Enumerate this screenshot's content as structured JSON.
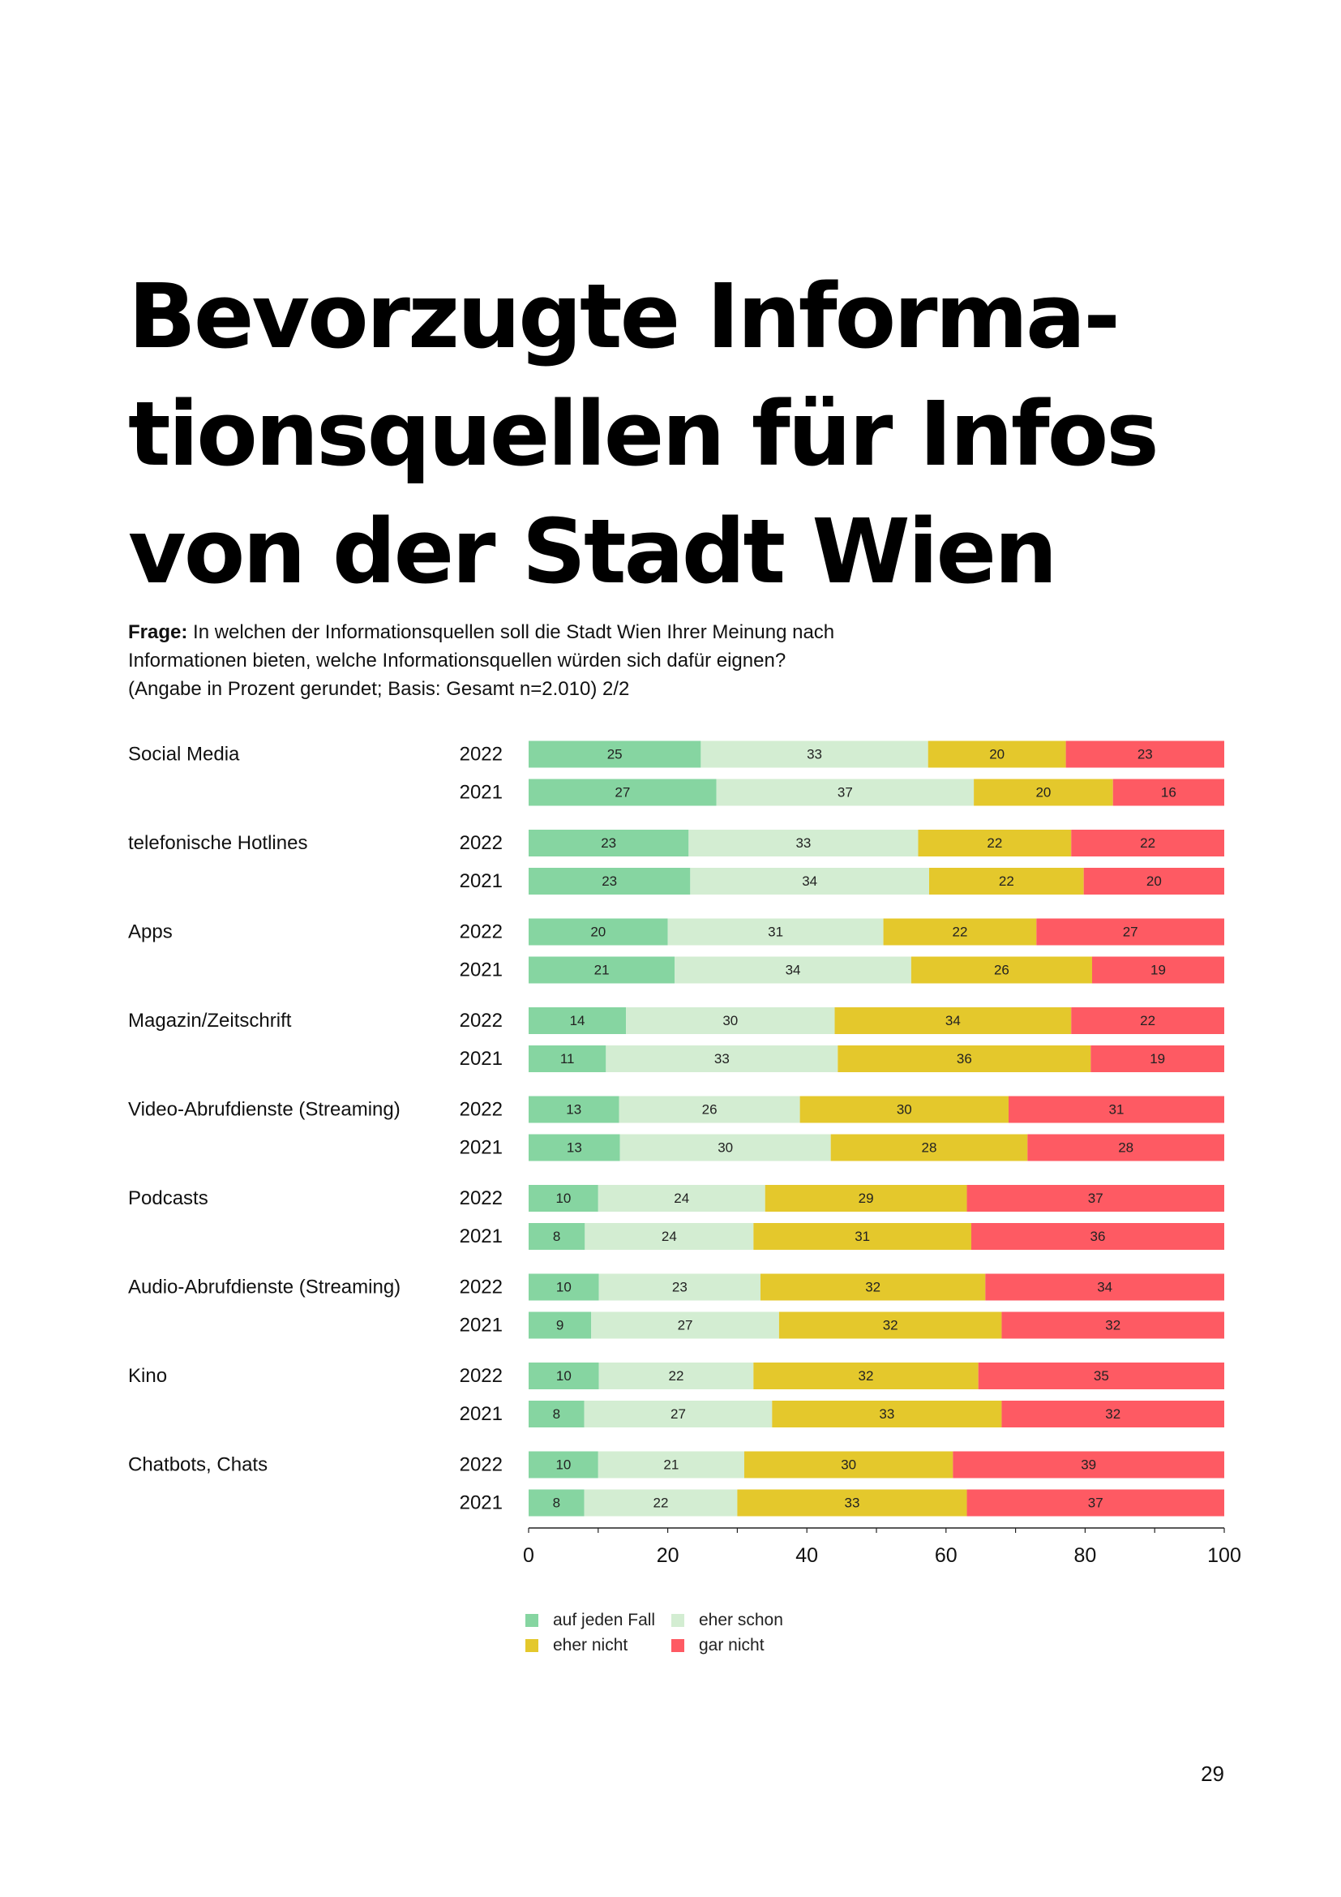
{
  "title": {
    "lines": [
      "Bevorzugte Informa-",
      "tionsquellen für Infos",
      "von der Stadt Wien"
    ]
  },
  "question": {
    "label": "Frage:",
    "line1": "In welchen der Informationsquellen soll die Stadt Wien Ihrer Meinung nach",
    "line2": "Informationen bieten, welche Informationsquellen würden sich dafür eignen?",
    "line3": "(Angabe in Prozent gerundet; Basis: Gesamt n=2.010) 2/2"
  },
  "page_number": "29",
  "colors": {
    "auf_jeden_fall": "#86d5a1",
    "eher_schon": "#d3edd2",
    "eher_nicht": "#e4c82c",
    "gar_nicht": "#fe5a63"
  },
  "legend": {
    "items": [
      {
        "label": "auf jeden Fall",
        "color": "#86d5a1"
      },
      {
        "label": "eher schon",
        "color": "#d3edd2"
      },
      {
        "label": "eher nicht",
        "color": "#e4c82c"
      },
      {
        "label": "gar nicht",
        "color": "#fe5a63"
      }
    ]
  },
  "chart_data": {
    "type": "bar",
    "orientation": "horizontal-stacked-100",
    "title": "Bevorzugte Informationsquellen für Infos von der Stadt Wien",
    "xlabel": "",
    "ylabel": "",
    "xlim": [
      0,
      100
    ],
    "xticks": [
      "0",
      "20",
      "40",
      "60",
      "80",
      "100"
    ],
    "series_names": [
      "auf jeden Fall",
      "eher schon",
      "eher nicht",
      "gar nicht"
    ],
    "groups": [
      {
        "label": "Social Media",
        "rows": [
          {
            "year": "2022",
            "values": [
              25,
              33,
              20,
              23
            ]
          },
          {
            "year": "2021",
            "values": [
              27,
              37,
              20,
              16
            ]
          }
        ]
      },
      {
        "label": "telefonische Hotlines",
        "rows": [
          {
            "year": "2022",
            "values": [
              23,
              33,
              22,
              22
            ]
          },
          {
            "year": "2021",
            "values": [
              23,
              34,
              22,
              20
            ]
          }
        ]
      },
      {
        "label": "Apps",
        "rows": [
          {
            "year": "2022",
            "values": [
              20,
              31,
              22,
              27
            ]
          },
          {
            "year": "2021",
            "values": [
              21,
              34,
              26,
              19
            ]
          }
        ]
      },
      {
        "label": "Magazin/Zeitschrift",
        "rows": [
          {
            "year": "2022",
            "values": [
              14,
              30,
              34,
              22
            ]
          },
          {
            "year": "2021",
            "values": [
              11,
              33,
              36,
              19
            ]
          }
        ]
      },
      {
        "label": "Video-Abrufdienste (Streaming)",
        "rows": [
          {
            "year": "2022",
            "values": [
              13,
              26,
              30,
              31
            ]
          },
          {
            "year": "2021",
            "values": [
              13,
              30,
              28,
              28
            ]
          }
        ]
      },
      {
        "label": "Podcasts",
        "rows": [
          {
            "year": "2022",
            "values": [
              10,
              24,
              29,
              37
            ]
          },
          {
            "year": "2021",
            "values": [
              8,
              24,
              31,
              36
            ]
          }
        ]
      },
      {
        "label": "Audio-Abrufdienste (Streaming)",
        "rows": [
          {
            "year": "2022",
            "values": [
              10,
              23,
              32,
              34
            ]
          },
          {
            "year": "2021",
            "values": [
              9,
              27,
              32,
              32
            ]
          }
        ]
      },
      {
        "label": "Kino",
        "rows": [
          {
            "year": "2022",
            "values": [
              10,
              22,
              32,
              35
            ]
          },
          {
            "year": "2021",
            "values": [
              8,
              27,
              33,
              32
            ]
          }
        ]
      },
      {
        "label": "Chatbots, Chats",
        "rows": [
          {
            "year": "2022",
            "values": [
              10,
              21,
              30,
              39
            ]
          },
          {
            "year": "2021",
            "values": [
              8,
              22,
              33,
              37
            ]
          }
        ]
      }
    ]
  }
}
